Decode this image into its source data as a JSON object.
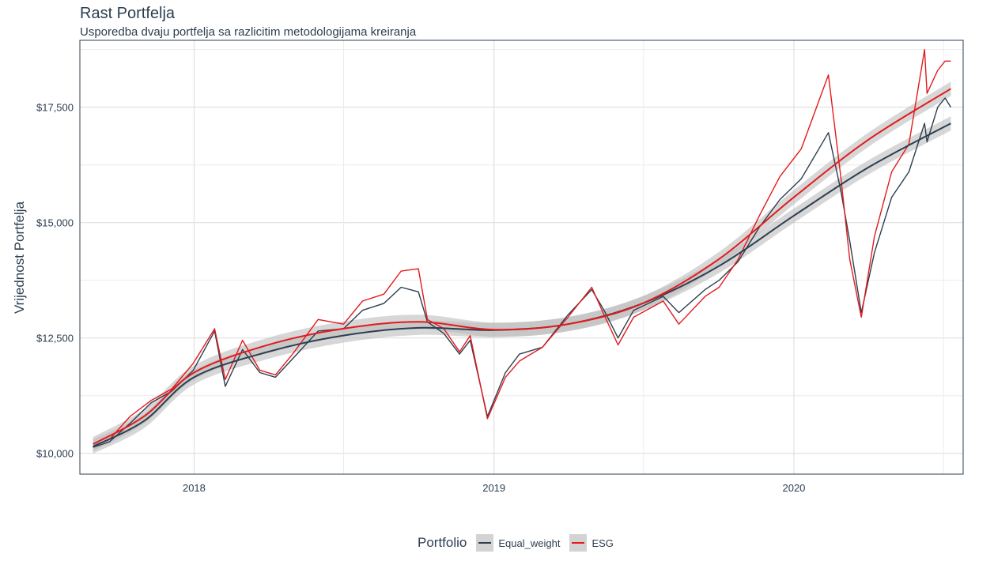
{
  "title": "Rast Portfelja",
  "subtitle": "Usporedba dvaju portfelja sa razlicitim metodologijama kreiranja",
  "legend": {
    "title": "Portfolio",
    "items": [
      {
        "label": "Equal_weight",
        "color": "#2c3e50"
      },
      {
        "label": "ESG",
        "color": "#e31a1c"
      }
    ],
    "position": "bottom"
  },
  "chart_data": {
    "type": "line",
    "title": "Rast Portfelja",
    "subtitle": "Usporedba dvaju portfelja sa razlicitim metodologijama kreiranja",
    "xlabel": "",
    "ylabel": "Vrijednost Portfelja",
    "xlim": [
      "2017-08-15",
      "2020-07-25"
    ],
    "ylim": [
      9550,
      18950
    ],
    "x_ticks": [
      "2018",
      "2019",
      "2020"
    ],
    "y_ticks": [
      "$10,000",
      "$12,500",
      "$15,000",
      "$17,500"
    ],
    "y_tick_values": [
      10000,
      12500,
      15000,
      17500
    ],
    "grid": true,
    "series": [
      {
        "name": "Equal_weight",
        "color": "#2c3e50",
        "points": [
          [
            "2017-08-31",
            10130
          ],
          [
            "2017-09-20",
            10250
          ],
          [
            "2017-10-15",
            10650
          ],
          [
            "2017-11-10",
            11100
          ],
          [
            "2017-12-05",
            11350
          ],
          [
            "2017-12-31",
            11800
          ],
          [
            "2018-01-26",
            12650
          ],
          [
            "2018-02-08",
            11450
          ],
          [
            "2018-03-01",
            12250
          ],
          [
            "2018-03-22",
            11750
          ],
          [
            "2018-04-10",
            11650
          ],
          [
            "2018-05-01",
            12050
          ],
          [
            "2018-06-01",
            12650
          ],
          [
            "2018-07-02",
            12700
          ],
          [
            "2018-07-25",
            13100
          ],
          [
            "2018-08-20",
            13250
          ],
          [
            "2018-09-10",
            13600
          ],
          [
            "2018-10-01",
            13500
          ],
          [
            "2018-10-12",
            12850
          ],
          [
            "2018-11-01",
            12600
          ],
          [
            "2018-11-20",
            12150
          ],
          [
            "2018-12-03",
            12450
          ],
          [
            "2018-12-24",
            10800
          ],
          [
            "2019-01-15",
            11750
          ],
          [
            "2019-02-01",
            12150
          ],
          [
            "2019-03-01",
            12300
          ],
          [
            "2019-04-01",
            13000
          ],
          [
            "2019-04-30",
            13550
          ],
          [
            "2019-05-15",
            13100
          ],
          [
            "2019-06-01",
            12500
          ],
          [
            "2019-06-20",
            13100
          ],
          [
            "2019-07-26",
            13400
          ],
          [
            "2019-08-14",
            13050
          ],
          [
            "2019-09-15",
            13550
          ],
          [
            "2019-10-02",
            13750
          ],
          [
            "2019-10-25",
            14150
          ],
          [
            "2019-11-20",
            14900
          ],
          [
            "2019-12-15",
            15500
          ],
          [
            "2020-01-10",
            15950
          ],
          [
            "2020-02-12",
            16950
          ],
          [
            "2020-02-27",
            15700
          ],
          [
            "2020-03-09",
            14600
          ],
          [
            "2020-03-23",
            13050
          ],
          [
            "2020-04-08",
            14350
          ],
          [
            "2020-04-29",
            15550
          ],
          [
            "2020-05-20",
            16100
          ],
          [
            "2020-06-08",
            17150
          ],
          [
            "2020-06-11",
            16750
          ],
          [
            "2020-06-24",
            17500
          ],
          [
            "2020-07-03",
            17700
          ],
          [
            "2020-07-10",
            17500
          ]
        ],
        "trend": [
          [
            "2017-08-31",
            10150
          ],
          [
            "2017-11-01",
            10700
          ],
          [
            "2018-01-01",
            11650
          ],
          [
            "2018-04-01",
            12200
          ],
          [
            "2018-07-01",
            12550
          ],
          [
            "2018-10-01",
            12720
          ],
          [
            "2019-01-01",
            12670
          ],
          [
            "2019-04-01",
            12800
          ],
          [
            "2019-07-01",
            13250
          ],
          [
            "2019-10-01",
            14050
          ],
          [
            "2020-01-01",
            15150
          ],
          [
            "2020-04-01",
            16200
          ],
          [
            "2020-07-10",
            17150
          ]
        ]
      },
      {
        "name": "ESG",
        "color": "#e31a1c",
        "points": [
          [
            "2017-08-31",
            10150
          ],
          [
            "2017-09-20",
            10300
          ],
          [
            "2017-10-15",
            10800
          ],
          [
            "2017-11-10",
            11150
          ],
          [
            "2017-12-05",
            11400
          ],
          [
            "2017-12-31",
            11950
          ],
          [
            "2018-01-26",
            12700
          ],
          [
            "2018-02-08",
            11600
          ],
          [
            "2018-03-01",
            12450
          ],
          [
            "2018-03-22",
            11800
          ],
          [
            "2018-04-10",
            11700
          ],
          [
            "2018-05-01",
            12150
          ],
          [
            "2018-06-01",
            12900
          ],
          [
            "2018-07-02",
            12800
          ],
          [
            "2018-07-25",
            13300
          ],
          [
            "2018-08-20",
            13450
          ],
          [
            "2018-09-10",
            13950
          ],
          [
            "2018-10-01",
            14000
          ],
          [
            "2018-10-12",
            12900
          ],
          [
            "2018-11-01",
            12700
          ],
          [
            "2018-11-20",
            12200
          ],
          [
            "2018-12-03",
            12550
          ],
          [
            "2018-12-24",
            10750
          ],
          [
            "2019-01-15",
            11650
          ],
          [
            "2019-02-01",
            12000
          ],
          [
            "2019-03-01",
            12300
          ],
          [
            "2019-04-01",
            12950
          ],
          [
            "2019-04-30",
            13600
          ],
          [
            "2019-05-15",
            13000
          ],
          [
            "2019-06-01",
            12350
          ],
          [
            "2019-06-20",
            12950
          ],
          [
            "2019-07-26",
            13300
          ],
          [
            "2019-08-14",
            12800
          ],
          [
            "2019-09-15",
            13400
          ],
          [
            "2019-10-02",
            13600
          ],
          [
            "2019-10-25",
            14200
          ],
          [
            "2019-11-20",
            15150
          ],
          [
            "2019-12-15",
            16000
          ],
          [
            "2020-01-10",
            16600
          ],
          [
            "2020-02-12",
            18200
          ],
          [
            "2020-02-27",
            16000
          ],
          [
            "2020-03-09",
            14200
          ],
          [
            "2020-03-23",
            12950
          ],
          [
            "2020-04-08",
            14700
          ],
          [
            "2020-04-29",
            16100
          ],
          [
            "2020-05-20",
            16700
          ],
          [
            "2020-06-08",
            18750
          ],
          [
            "2020-06-11",
            17800
          ],
          [
            "2020-06-24",
            18300
          ],
          [
            "2020-07-03",
            18500
          ],
          [
            "2020-07-10",
            18500
          ]
        ],
        "trend": [
          [
            "2017-08-31",
            10200
          ],
          [
            "2017-11-01",
            10800
          ],
          [
            "2018-01-01",
            11750
          ],
          [
            "2018-04-01",
            12350
          ],
          [
            "2018-07-01",
            12700
          ],
          [
            "2018-10-01",
            12850
          ],
          [
            "2019-01-01",
            12680
          ],
          [
            "2019-04-01",
            12800
          ],
          [
            "2019-07-01",
            13250
          ],
          [
            "2019-10-01",
            14200
          ],
          [
            "2020-01-01",
            15550
          ],
          [
            "2020-04-01",
            16800
          ],
          [
            "2020-07-10",
            17900
          ]
        ]
      }
    ]
  }
}
